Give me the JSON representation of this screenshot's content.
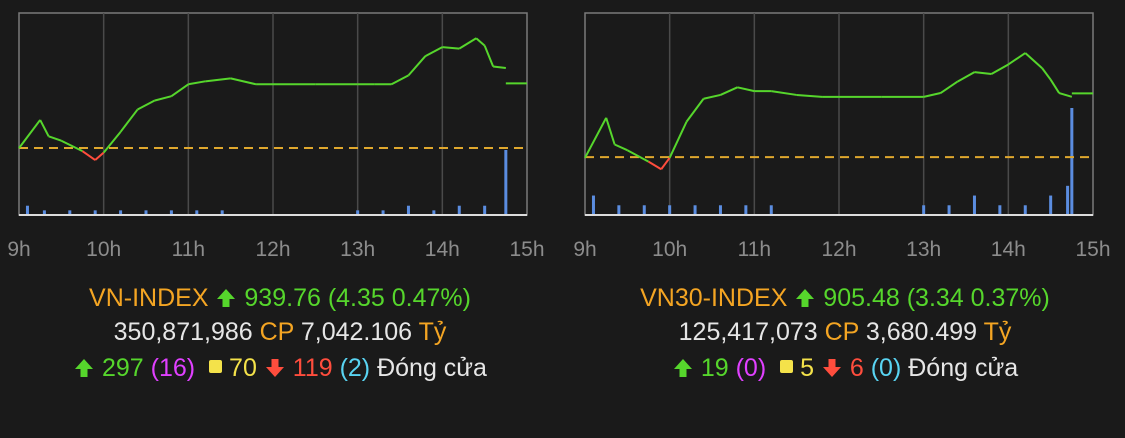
{
  "colors": {
    "background": "#1a1a1a",
    "up": "#56d62c",
    "down": "#ff4d3d",
    "reference": "#e0a82e",
    "volume": "#5b8de0",
    "name": "#f4a523",
    "ceiling": "#e040ff",
    "floor": "#59d4f2",
    "unchanged": "#f4e24a"
  },
  "charts": [
    {
      "name": "VN-INDEX",
      "direction_icon": "arrow-up-icon",
      "value": "939.76",
      "change": "(4.35 0.47%)",
      "volume": "350,871,986",
      "cp_label": "CP",
      "turnover": "7,042.106",
      "unit": "Tỷ",
      "advancers": "297",
      "ceiling_count": "(16)",
      "unchanged": "70",
      "decliners": "119",
      "floor_count": "(2)",
      "status": "Đóng cửa",
      "hour_labels": [
        "9h",
        "10h",
        "11h",
        "12h",
        "13h",
        "14h",
        "15h"
      ]
    },
    {
      "name": "VN30-INDEX",
      "direction_icon": "arrow-up-icon",
      "value": "905.48",
      "change": "(3.34 0.37%)",
      "volume": "125,417,073",
      "cp_label": "CP",
      "turnover": "3,680.499",
      "unit": "Tỷ",
      "advancers": "19",
      "ceiling_count": "(0)",
      "unchanged": "5",
      "decliners": "6",
      "floor_count": "(0)",
      "status": "Đóng cửa",
      "hour_labels": [
        "9h",
        "10h",
        "11h",
        "12h",
        "13h",
        "14h",
        "15h"
      ]
    }
  ],
  "chart_data": [
    {
      "type": "line",
      "title": "VN-INDEX",
      "x_ticks": [
        "9h",
        "10h",
        "11h",
        "12h",
        "13h",
        "14h",
        "15h"
      ],
      "reference": 935.41,
      "ylim": [
        930.9,
        944.5
      ],
      "series": [
        {
          "x": [
            9.0,
            9.25,
            9.35,
            9.5,
            9.75,
            9.9,
            10.0,
            10.2,
            10.4,
            10.6,
            10.8,
            11.0,
            11.2,
            11.5,
            11.8,
            12.0,
            12.5,
            13.0,
            13.2,
            13.4,
            13.6,
            13.8,
            14.0,
            14.2,
            14.4,
            14.5,
            14.6,
            14.75
          ],
          "values": [
            935.4,
            937.3,
            936.2,
            935.9,
            935.2,
            934.6,
            935.1,
            936.5,
            938.0,
            938.6,
            938.9,
            939.7,
            939.9,
            940.1,
            939.7,
            939.7,
            939.7,
            939.7,
            939.7,
            939.7,
            940.3,
            941.6,
            942.2,
            942.1,
            942.8,
            942.3,
            940.9,
            940.8
          ]
        }
      ],
      "close": {
        "from_x": 14.75,
        "to_x": 15.0,
        "value": 939.76
      },
      "volume_bars": {
        "x": [
          9.1,
          9.3,
          9.6,
          9.9,
          10.2,
          10.5,
          10.8,
          11.1,
          11.4,
          13.0,
          13.3,
          13.6,
          13.9,
          14.2,
          14.5,
          14.75
        ],
        "values": [
          2,
          1,
          1,
          1,
          1,
          1,
          1,
          1,
          1,
          1,
          1,
          2,
          1,
          2,
          2,
          14
        ]
      }
    },
    {
      "type": "line",
      "title": "VN30-INDEX",
      "x_ticks": [
        "9h",
        "10h",
        "11h",
        "12h",
        "13h",
        "14h",
        "15h"
      ],
      "reference": 902.14,
      "ylim": [
        899.1,
        909.7
      ],
      "series": [
        {
          "x": [
            9.0,
            9.25,
            9.35,
            9.5,
            9.75,
            9.9,
            10.0,
            10.2,
            10.4,
            10.6,
            10.8,
            11.0,
            11.2,
            11.5,
            11.8,
            12.0,
            12.5,
            13.0,
            13.2,
            13.4,
            13.6,
            13.8,
            14.0,
            14.2,
            14.4,
            14.5,
            14.6,
            14.75
          ],
          "values": [
            902.1,
            904.2,
            902.8,
            902.5,
            901.9,
            901.5,
            902.1,
            904.0,
            905.2,
            905.4,
            905.8,
            905.6,
            905.6,
            905.4,
            905.3,
            905.3,
            905.3,
            905.3,
            905.5,
            906.1,
            906.6,
            906.5,
            907.0,
            907.6,
            906.8,
            906.2,
            905.5,
            905.3
          ]
        }
      ],
      "close": {
        "from_x": 14.75,
        "to_x": 15.0,
        "value": 905.48
      },
      "volume_bars": {
        "x": [
          9.1,
          9.4,
          9.7,
          10.0,
          10.3,
          10.6,
          10.9,
          11.2,
          13.0,
          13.3,
          13.6,
          13.9,
          14.2,
          14.5,
          14.7,
          14.75
        ],
        "values": [
          2,
          1,
          1,
          1,
          1,
          1,
          1,
          1,
          1,
          1,
          2,
          1,
          1,
          2,
          3,
          11
        ]
      }
    }
  ]
}
